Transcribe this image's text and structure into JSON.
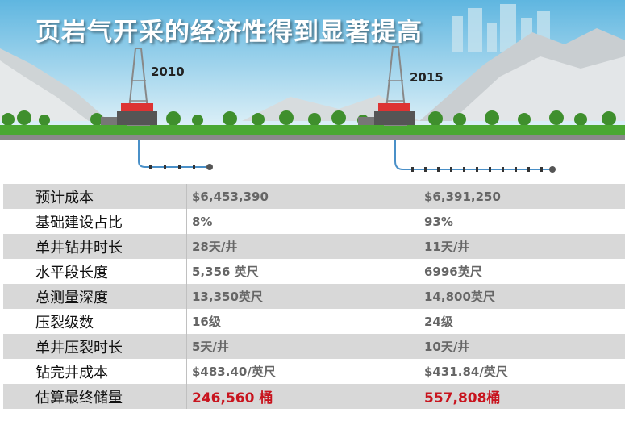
{
  "header": {
    "title": "页岩气开采的经济性得到显著提高",
    "year_left": "2010",
    "year_right": "2015"
  },
  "colors": {
    "sky": "#9fd3ea",
    "ground": "#4aa832",
    "highlight": "#c8141e",
    "row_shade": "#d8d8d8"
  },
  "rows": [
    {
      "label": "预计成本",
      "v2010": "$6,453,390",
      "v2015": "$6,391,250"
    },
    {
      "label": "基础建设占比",
      "v2010": "8%",
      "v2015": "93%"
    },
    {
      "label": "单井钻井时长",
      "v2010": "28天/井",
      "v2015": "11天/井"
    },
    {
      "label": "水平段长度",
      "v2010": "5,356 英尺",
      "v2015": "6996英尺"
    },
    {
      "label": "总测量深度",
      "v2010": "13,350英尺",
      "v2015": "14,800英尺"
    },
    {
      "label": "压裂级数",
      "v2010": "16级",
      "v2015": "24级"
    },
    {
      "label": "单井压裂时长",
      "v2010": " 5天/井",
      "v2015": "10天/井"
    },
    {
      "label": "钻完井成本",
      "v2010": "$483.40/英尺",
      "v2015": "$431.84/英尺"
    },
    {
      "label": "估算最终储量",
      "v2010": "246,560 桶",
      "v2015": "557,808桶"
    }
  ]
}
